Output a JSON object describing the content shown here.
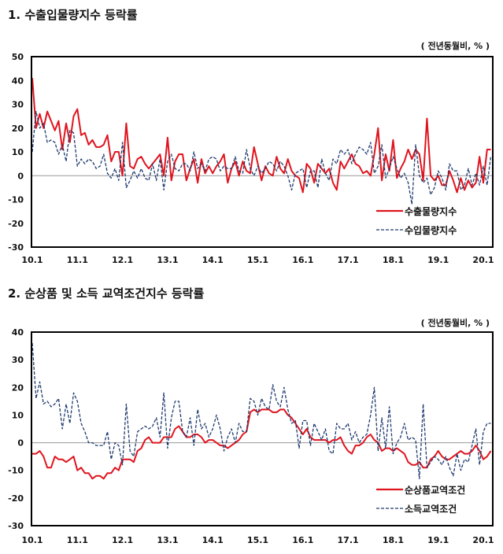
{
  "chart_data": [
    {
      "type": "line",
      "title": "1. 수출입물량지수 등락률",
      "unit": "( 전년동월비, % )",
      "xlabel": "",
      "ylabel": "",
      "ylim": [
        -30,
        50
      ],
      "yticks": [
        50,
        40,
        30,
        20,
        10,
        0,
        -10,
        -20,
        -30
      ],
      "xticks": [
        "10.1",
        "11.1",
        "12.1",
        "13.1",
        "14.1",
        "15.1",
        "16.1",
        "17.1",
        "18.1",
        "19.1",
        "20.1"
      ],
      "x_start": "2010.1",
      "frequency": "monthly",
      "legend_position": "bottom-right",
      "series": [
        {
          "name": "수출물량지수",
          "color": "#e0141e",
          "style": "solid",
          "values": [
            41,
            20,
            26,
            20,
            27,
            23,
            19,
            23,
            11,
            22,
            14,
            25,
            28,
            17,
            18,
            13,
            15,
            12,
            12,
            13,
            17,
            6,
            10,
            10,
            0,
            22,
            4,
            3,
            7,
            8,
            5,
            3,
            5,
            7,
            9,
            0,
            16,
            -2,
            6,
            9,
            9,
            -2,
            3,
            7,
            -3,
            7,
            1,
            4,
            1,
            4,
            6,
            9,
            -3,
            3,
            6,
            0,
            6,
            2,
            1,
            12,
            5,
            -2,
            4,
            1,
            0,
            8,
            3,
            1,
            7,
            2,
            0,
            -1,
            -7,
            5,
            3,
            -3,
            5,
            3,
            1,
            3,
            -3,
            -6,
            6,
            3,
            6,
            9,
            5,
            4,
            1,
            2,
            0,
            9,
            20,
            -2,
            9,
            2,
            15,
            -1,
            3,
            6,
            11,
            7,
            11,
            9,
            -2,
            24,
            0,
            -2,
            0,
            -4,
            -4,
            2,
            -2,
            -7,
            -1,
            -6,
            -2,
            -5,
            -3,
            8,
            -3,
            11,
            11
          ]
        },
        {
          "name": "수입물량지수",
          "color": "#1f3a6e",
          "style": "dashed",
          "values": [
            10,
            27,
            20,
            22,
            14,
            15,
            14,
            9,
            13,
            6,
            19,
            18,
            4,
            7,
            5,
            7,
            6,
            3,
            4,
            9,
            1,
            -1,
            3,
            -2,
            14,
            -5,
            -2,
            2,
            -1,
            3,
            -1,
            -2,
            5,
            -2,
            7,
            -6,
            6,
            9,
            3,
            2,
            5,
            5,
            2,
            10,
            3,
            5,
            2,
            7,
            8,
            7,
            2,
            4,
            3,
            3,
            8,
            2,
            1,
            11,
            3,
            0,
            4,
            1,
            3,
            6,
            5,
            2,
            6,
            4,
            0,
            -6,
            1,
            2,
            3,
            -5,
            2,
            2,
            -5,
            7,
            1,
            -2,
            7,
            5,
            11,
            9,
            11,
            5,
            9,
            12,
            11,
            9,
            14,
            1,
            4,
            13,
            -1,
            3,
            8,
            3,
            -1,
            1,
            -3,
            -12,
            13,
            0,
            -3,
            -1,
            -8,
            -5,
            2,
            -1,
            -6,
            5,
            2,
            2,
            -6,
            -4,
            3,
            -4,
            1,
            -4,
            4,
            -4,
            8
          ]
        }
      ]
    },
    {
      "type": "line",
      "title": "2. 순상품 및 소득 교역조건지수 등락률",
      "unit": "( 전년동월비, % )",
      "xlabel": "",
      "ylabel": "",
      "ylim": [
        -30,
        40
      ],
      "yticks": [
        40,
        30,
        20,
        10,
        0,
        -10,
        -20,
        -30
      ],
      "xticks": [
        "10.1",
        "11.1",
        "12.1",
        "13.1",
        "14.1",
        "15.1",
        "16.1",
        "17.1",
        "18.1",
        "19.1",
        "20.1"
      ],
      "x_start": "2010.1",
      "frequency": "monthly",
      "legend_position": "bottom-right",
      "series": [
        {
          "name": "순상품교역조건",
          "color": "#e0141e",
          "style": "solid",
          "values": [
            -4,
            -4,
            -3,
            -5,
            -9,
            -9,
            -5,
            -6,
            -6,
            -7,
            -6,
            -5,
            -10,
            -9,
            -11,
            -11,
            -13,
            -12,
            -12,
            -13,
            -11,
            -11,
            -9,
            -10,
            -6,
            -6,
            -6,
            -7,
            -3,
            -2,
            1,
            2,
            0,
            0,
            0,
            2,
            2,
            2,
            5,
            6,
            4,
            2,
            2,
            3,
            3,
            2,
            0,
            1,
            1,
            0,
            -1,
            -1,
            -2,
            -1,
            0,
            1,
            3,
            4,
            11,
            12,
            11,
            12,
            12,
            12,
            11,
            11,
            12,
            12,
            10,
            9,
            7,
            5,
            3,
            5,
            2,
            1,
            1,
            1,
            1,
            0,
            1,
            1,
            2,
            -1,
            -3,
            -4,
            -1,
            -1,
            0,
            2,
            3,
            1,
            0,
            -3,
            -2,
            -2,
            -3,
            -2,
            -3,
            -4,
            -7,
            -8,
            -8,
            -7,
            -9,
            -9,
            -6,
            -5,
            -3,
            -5,
            -6,
            -6,
            -5,
            -4,
            -3,
            -4,
            -4,
            -3,
            -1,
            -3,
            -6,
            -5,
            -3
          ]
        },
        {
          "name": "소득교역조건",
          "color": "#1f3a6e",
          "style": "dashed",
          "values": [
            36,
            16,
            22,
            14,
            15,
            13,
            14,
            16,
            5,
            14,
            7,
            18,
            15,
            7,
            4,
            0,
            0,
            -1,
            -1,
            -1,
            4,
            -6,
            0,
            -1,
            -8,
            14,
            -3,
            -5,
            4,
            5,
            6,
            5,
            6,
            9,
            2,
            18,
            -2,
            9,
            15,
            15,
            4,
            2,
            9,
            -1,
            12,
            5,
            7,
            2,
            5,
            10,
            5,
            -3,
            2,
            5,
            0,
            7,
            4,
            4,
            16,
            15,
            10,
            16,
            13,
            12,
            21,
            15,
            13,
            20,
            12,
            7,
            8,
            -2,
            8,
            8,
            -1,
            7,
            4,
            1,
            5,
            -3,
            -4,
            7,
            5,
            5,
            7,
            1,
            4,
            0,
            2,
            3,
            10,
            20,
            -3,
            9,
            -2,
            13,
            -4,
            0,
            2,
            7,
            1,
            2,
            1,
            -13,
            14,
            -9,
            -7,
            -5,
            -6,
            -8,
            -5,
            -9,
            -12,
            -4,
            -10,
            -6,
            -7,
            -1,
            5,
            -8,
            4,
            7,
            7
          ]
        }
      ]
    }
  ]
}
